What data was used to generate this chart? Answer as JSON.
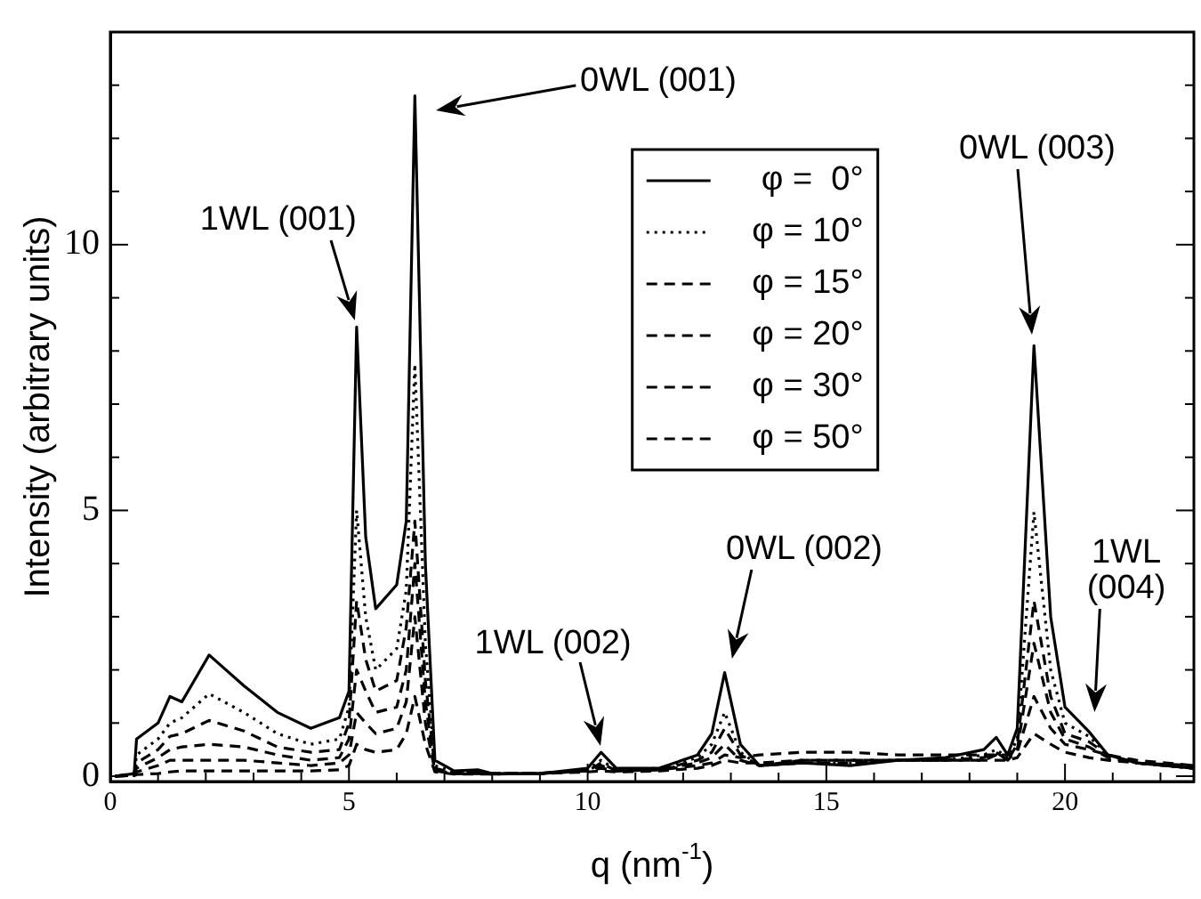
{
  "chart_data": {
    "type": "line",
    "xlabel": "q (nm$^{-1}$)",
    "ylabel": "Intensity (arbitrary units)",
    "x": [
      0.1,
      0.5,
      0.55,
      1.0,
      1.25,
      1.5,
      2.07,
      2.8,
      3.5,
      4.2,
      4.8,
      5.0,
      5.16,
      5.35,
      5.56,
      6.0,
      6.2,
      6.38,
      6.6,
      6.8,
      7.2,
      7.7,
      8,
      9,
      10,
      10.28,
      10.6,
      11.5,
      12.3,
      12.6,
      12.87,
      13.2,
      13.6,
      14.5,
      15.5,
      16.5,
      17.5,
      18.3,
      18.56,
      18.8,
      19.0,
      19.35,
      19.7,
      20.0,
      20.5,
      20.9,
      21.5,
      22.7
    ],
    "series": [
      {
        "name": "φ =  0°",
        "color": "#000000",
        "line_style": "solid",
        "values": [
          0.0,
          0.05,
          0.7,
          1.0,
          1.5,
          1.4,
          2.28,
          1.7,
          1.2,
          0.9,
          1.1,
          1.6,
          8.45,
          4.5,
          3.15,
          3.6,
          4.8,
          12.8,
          4.0,
          0.3,
          0.1,
          0.12,
          0.05,
          0.05,
          0.15,
          0.45,
          0.15,
          0.15,
          0.4,
          0.8,
          1.95,
          0.6,
          0.2,
          0.25,
          0.2,
          0.3,
          0.35,
          0.5,
          0.73,
          0.4,
          0.9,
          8.1,
          3.0,
          1.3,
          0.84,
          0.4,
          0.25,
          0.15
        ]
      },
      {
        "name": "φ = 10°",
        "color": "#000000",
        "line_style": "dotted",
        "values": [
          0,
          0.05,
          0.4,
          0.7,
          1.0,
          1.1,
          1.55,
          1.2,
          0.8,
          0.6,
          0.7,
          1.3,
          5.0,
          3.0,
          2.0,
          2.4,
          3.5,
          7.75,
          2.5,
          0.2,
          0.08,
          0.1,
          0.05,
          0.05,
          0.12,
          0.3,
          0.12,
          0.15,
          0.35,
          0.6,
          1.2,
          0.45,
          0.2,
          0.25,
          0.25,
          0.3,
          0.3,
          0.4,
          0.5,
          0.35,
          0.7,
          4.97,
          2.0,
          1.0,
          0.75,
          0.4,
          0.25,
          0.15
        ]
      },
      {
        "name": "φ = 15°",
        "color": "#000000",
        "line_style": "dashed",
        "values": [
          0,
          0.05,
          0.25,
          0.5,
          0.75,
          0.8,
          1.05,
          0.85,
          0.55,
          0.45,
          0.5,
          1.0,
          3.3,
          2.2,
          1.6,
          1.8,
          2.8,
          4.8,
          1.8,
          0.15,
          0.06,
          0.08,
          0.05,
          0.05,
          0.1,
          0.25,
          0.1,
          0.12,
          0.3,
          0.45,
          0.9,
          0.4,
          0.2,
          0.25,
          0.25,
          0.3,
          0.3,
          0.35,
          0.45,
          0.3,
          0.6,
          3.3,
          1.5,
          0.8,
          0.65,
          0.4,
          0.25,
          0.15
        ]
      },
      {
        "name": "φ = 20°",
        "color": "#000000",
        "line_style": "dashed",
        "values": [
          0,
          0.03,
          0.15,
          0.35,
          0.5,
          0.55,
          0.6,
          0.55,
          0.4,
          0.3,
          0.35,
          0.7,
          2.0,
          1.6,
          1.2,
          1.3,
          2.0,
          4.0,
          1.4,
          0.12,
          0.05,
          0.06,
          0.04,
          0.05,
          0.1,
          0.2,
          0.1,
          0.12,
          0.25,
          0.35,
          0.6,
          0.3,
          0.2,
          0.3,
          0.3,
          0.3,
          0.3,
          0.3,
          0.4,
          0.3,
          0.5,
          2.5,
          1.2,
          0.7,
          0.55,
          0.35,
          0.25,
          0.15
        ]
      },
      {
        "name": "φ = 30°",
        "color": "#000000",
        "line_style": "dashed",
        "values": [
          0,
          0.02,
          0.08,
          0.2,
          0.3,
          0.3,
          0.3,
          0.3,
          0.25,
          0.2,
          0.25,
          0.4,
          1.2,
          1.0,
          0.8,
          0.9,
          1.4,
          3.0,
          1.0,
          0.1,
          0.05,
          0.05,
          0.05,
          0.06,
          0.1,
          0.15,
          0.1,
          0.12,
          0.2,
          0.25,
          0.4,
          0.35,
          0.4,
          0.45,
          0.45,
          0.4,
          0.4,
          0.4,
          0.4,
          0.4,
          0.45,
          1.5,
          0.9,
          0.6,
          0.5,
          0.4,
          0.3,
          0.2
        ]
      },
      {
        "name": "φ = 50°",
        "color": "#000000",
        "line_style": "dashed",
        "values": [
          0,
          0.01,
          0.03,
          0.05,
          0.08,
          0.1,
          0.1,
          0.1,
          0.1,
          0.1,
          0.12,
          0.2,
          0.6,
          0.5,
          0.45,
          0.5,
          0.8,
          1.5,
          0.6,
          0.08,
          0.04,
          0.04,
          0.04,
          0.05,
          0.08,
          0.1,
          0.08,
          0.1,
          0.15,
          0.2,
          0.3,
          0.25,
          0.25,
          0.3,
          0.3,
          0.3,
          0.3,
          0.3,
          0.3,
          0.3,
          0.35,
          0.8,
          0.6,
          0.45,
          0.35,
          0.3,
          0.25,
          0.2
        ]
      }
    ],
    "xlim": [
      0,
      22.7
    ],
    "ylim": [
      -0.1,
      14
    ],
    "xticks": [
      0,
      {
        "value": 1,
        "label": null
      },
      {
        "value": 2,
        "label": null
      },
      {
        "value": 3,
        "label": null
      },
      {
        "value": 4,
        "label": null
      },
      5,
      {
        "value": 6,
        "label": null
      },
      {
        "value": 7,
        "label": null
      },
      {
        "value": 8,
        "label": null
      },
      {
        "value": 9,
        "label": null
      },
      10,
      {
        "value": 11,
        "label": null
      },
      {
        "value": 12,
        "label": null
      },
      {
        "value": 13,
        "label": null
      },
      {
        "value": 14,
        "label": null
      },
      15,
      {
        "value": 16,
        "label": null
      },
      {
        "value": 17,
        "label": null
      },
      {
        "value": 18,
        "label": null
      },
      {
        "value": 19,
        "label": null
      },
      20,
      {
        "value": 21,
        "label": null
      },
      {
        "value": 22,
        "label": null
      }
    ],
    "yticks": [
      0,
      {
        "value": 1,
        "label": null
      },
      {
        "value": 2,
        "label": null
      },
      {
        "value": 3,
        "label": null
      },
      {
        "value": 4,
        "label": null
      },
      5,
      {
        "value": 6,
        "label": null
      },
      {
        "value": 7,
        "label": null
      },
      {
        "value": 8,
        "label": null
      },
      {
        "value": 9,
        "label": null
      },
      10,
      {
        "value": 11,
        "label": null
      },
      {
        "value": 12,
        "label": null
      },
      {
        "value": 13,
        "label": null
      }
    ],
    "grid": false,
    "legend": "top",
    "marker": "none",
    "annotations": [
      "0WL (001)",
      {
        "text": "1WL (001)",
        "x": 5.16,
        "y": 8.45
      },
      {
        "text": "1WL (002)",
        "x": 10.28,
        "y": 0.45
      },
      "0WL (002)",
      "0WL (003)",
      "1WL\n(004)"
    ]
  }
}
